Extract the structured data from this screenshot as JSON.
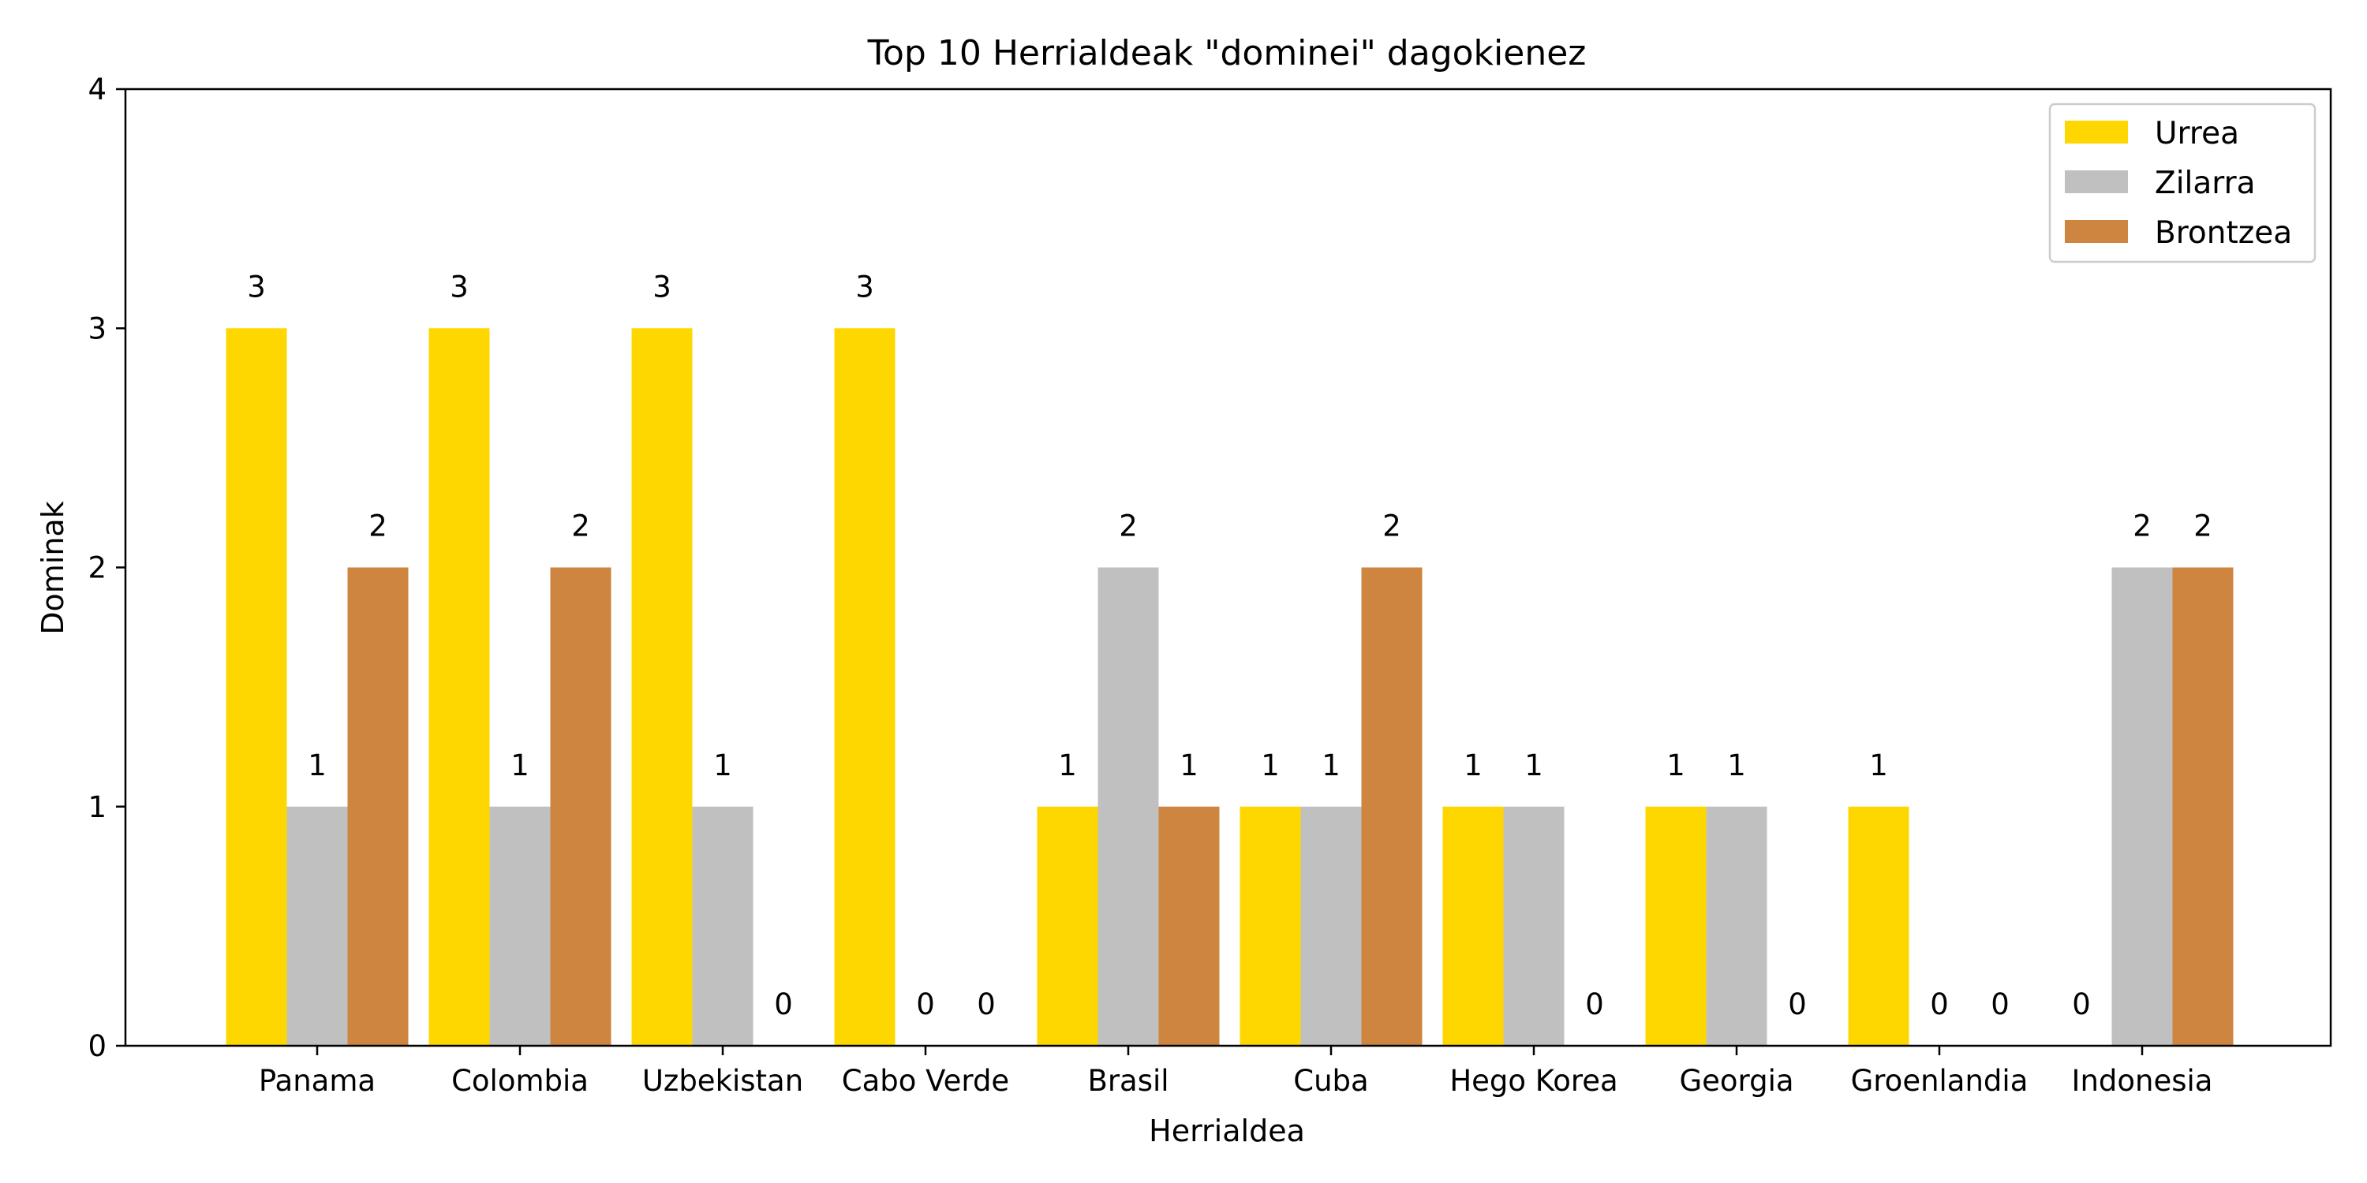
{
  "chart_data": {
    "type": "bar",
    "title": "Top 10 Herrialdeak \"dominei\" dagokienez",
    "xlabel": "Herrialdea",
    "ylabel": "Dominak",
    "ylim": [
      0,
      4
    ],
    "yticks": [
      0,
      1,
      2,
      3,
      4
    ],
    "categories": [
      "Panama",
      "Colombia",
      "Uzbekistan",
      "Cabo Verde",
      "Brasil",
      "Cuba",
      "Hego Korea",
      "Georgia",
      "Groenlandia",
      "Indonesia"
    ],
    "series": [
      {
        "name": "Urrea",
        "color": "#FFD700",
        "values": [
          3,
          3,
          3,
          3,
          1,
          1,
          1,
          1,
          1,
          0
        ]
      },
      {
        "name": "Zilarra",
        "color": "#C0C0C0",
        "values": [
          1,
          1,
          1,
          0,
          2,
          1,
          1,
          1,
          0,
          2
        ]
      },
      {
        "name": "Brontzea",
        "color": "#CD853F",
        "values": [
          2,
          2,
          0,
          0,
          1,
          2,
          0,
          0,
          0,
          2
        ]
      }
    ],
    "legend_position": "top-right",
    "grid": false
  }
}
